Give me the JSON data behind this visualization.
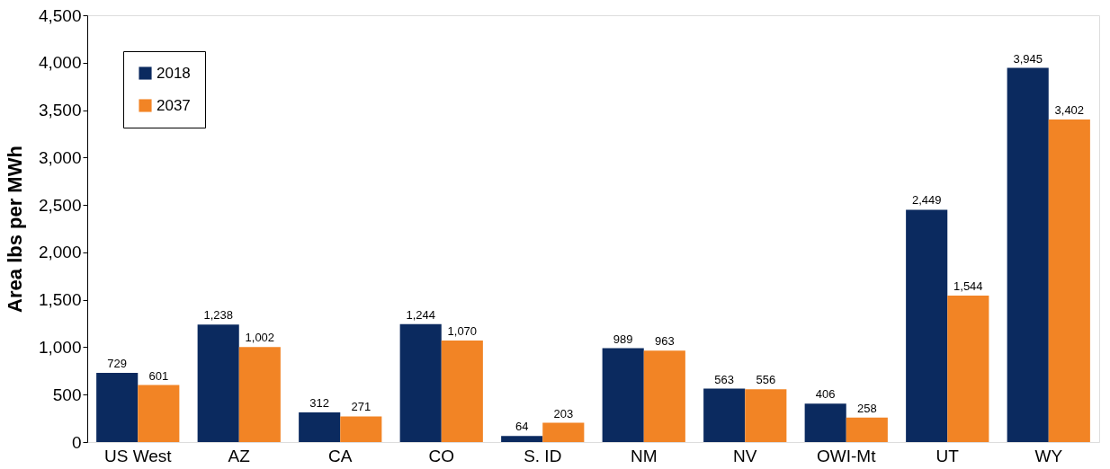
{
  "chart_data": {
    "type": "bar",
    "ylabel": "Area lbs per MWh",
    "categories": [
      "US West",
      "AZ",
      "CA",
      "CO",
      "S. ID",
      "NM",
      "NV",
      "OWI-Mt",
      "UT",
      "WY"
    ],
    "series": [
      {
        "name": "2018",
        "color": "#0b2a5f",
        "values": [
          729,
          1238,
          312,
          1244,
          64,
          989,
          563,
          406,
          2449,
          3945
        ],
        "value_labels": [
          "729",
          "1,238",
          "312",
          "1,244",
          "64",
          "989",
          "563",
          "406",
          "2,449",
          "3,945"
        ]
      },
      {
        "name": "2037",
        "color": "#f28425",
        "values": [
          601,
          1002,
          271,
          1070,
          203,
          963,
          556,
          258,
          1544,
          3402
        ],
        "value_labels": [
          "601",
          "1,002",
          "271",
          "1,070",
          "203",
          "963",
          "556",
          "258",
          "1,544",
          "3,402"
        ]
      }
    ],
    "ylim": [
      0,
      4500
    ],
    "yticks": [
      0,
      {
        "value": 500,
        "label": "500"
      },
      {
        "value": 1000,
        "label": "1,000"
      },
      {
        "value": 1500,
        "label": "1,500"
      },
      {
        "value": 2000,
        "label": "2,000"
      },
      {
        "value": 2500,
        "label": "2,500"
      },
      {
        "value": 3000,
        "label": "3,000"
      },
      {
        "value": 3500,
        "label": "3,500"
      },
      {
        "value": 4000,
        "label": "4,000"
      },
      {
        "value": 4500,
        "label": "4,500"
      }
    ],
    "legend": "top left",
    "grid": false
  }
}
